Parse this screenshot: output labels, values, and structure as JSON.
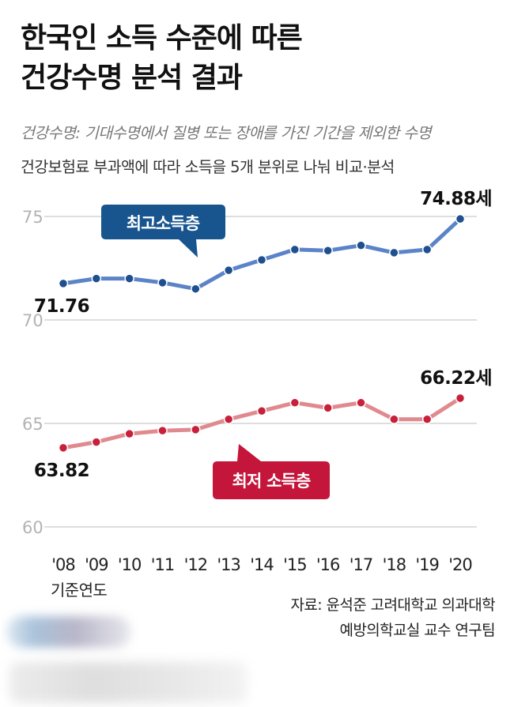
{
  "header": {
    "title_line1": "한국인 소득 수준에 따른",
    "title_line2": "건강수명 분석 결과",
    "subtitle1": "건강수명: 기대수명에서 질병 또는 장애를 가진 기간을 제외한 수명",
    "subtitle2": "건강보험료 부과액에 따라 소득을 5개 분위로 나눠 비교·분석"
  },
  "source": {
    "line1": "자료: 윤석준 고려대학교 의과대학",
    "line2": "예방의학교실 교수 연구팀"
  },
  "chart_data": {
    "type": "line",
    "categories": [
      "'08",
      "'09",
      "'10",
      "'11",
      "'12",
      "'13",
      "'14",
      "'15",
      "'16",
      "'17",
      "'18",
      "'19",
      "'20"
    ],
    "xlabel": "기준연도",
    "ylabel": "",
    "ylim": [
      60,
      75
    ],
    "yticks": [
      "60",
      "65",
      "70",
      "75"
    ],
    "grid": true,
    "series": [
      {
        "name": "최고소득층",
        "color": "#5b84c8",
        "marker_color": "#1e4f8f",
        "label_bg": "#18558f",
        "values": [
          71.76,
          72.0,
          72.0,
          71.8,
          71.5,
          72.4,
          72.9,
          73.4,
          73.35,
          73.6,
          73.25,
          73.4,
          74.88
        ],
        "start_label": "71.76",
        "end_label": "74.88세"
      },
      {
        "name": "최저 소득층",
        "color": "#e08a8f",
        "marker_color": "#c8203a",
        "label_bg": "#c4163a",
        "values": [
          63.82,
          64.1,
          64.5,
          64.65,
          64.7,
          65.2,
          65.6,
          66.0,
          65.75,
          66.0,
          65.2,
          65.2,
          66.22
        ],
        "start_label": "63.82",
        "end_label": "66.22세"
      }
    ]
  }
}
